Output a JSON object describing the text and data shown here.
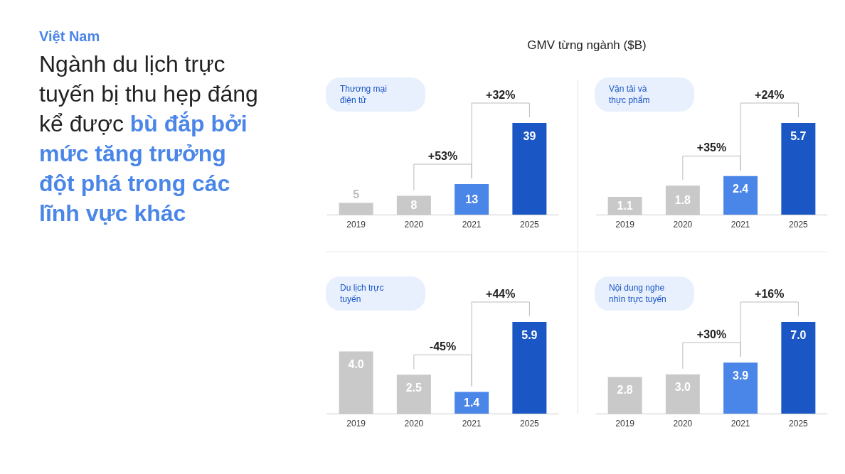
{
  "chart_data": [
    {
      "type": "other",
      "title": "Việt Nam",
      "subtitle": "Ngành du lịch trực tuyến bị thu hẹp đáng kể được",
      "annotations": [
        "bù đắp bởi mức tăng trưởng đột phá trong các lĩnh vực khác",
        "GMV từng ngành ($B)"
      ]
    },
    {
      "type": "bar",
      "title": "Thương mại điện tử",
      "categories": [
        "2019",
        "2020",
        "2021",
        "2025"
      ],
      "values": [
        5,
        8,
        13,
        39
      ],
      "value_labels": [
        "5",
        "8",
        "13",
        "39"
      ],
      "colors": [
        "#c9c9c9",
        "#c9c9c9",
        "#4a86e8",
        "#1a56c4"
      ],
      "annotations": [
        "+53%",
        "+32%"
      ]
    },
    {
      "type": "bar",
      "title": "Vận tải và thực phẩm",
      "categories": [
        "2019",
        "2020",
        "2021",
        "2025"
      ],
      "values": [
        1.1,
        1.8,
        2.4,
        5.7
      ],
      "value_labels": [
        "1.1",
        "1.8",
        "2.4",
        "5.7"
      ],
      "colors": [
        "#c9c9c9",
        "#c9c9c9",
        "#4a86e8",
        "#1a56c4"
      ],
      "annotations": [
        "+35%",
        "+24%"
      ]
    },
    {
      "type": "bar",
      "title": "Du lịch trực tuyến",
      "categories": [
        "2019",
        "2020",
        "2021",
        "2025"
      ],
      "values": [
        4.0,
        2.5,
        1.4,
        5.9
      ],
      "value_labels": [
        "4.0",
        "2.5",
        "1.4",
        "5.9"
      ],
      "colors": [
        "#c9c9c9",
        "#c9c9c9",
        "#4a86e8",
        "#1a56c4"
      ],
      "annotations": [
        "-45%",
        "+44%"
      ]
    },
    {
      "type": "bar",
      "title": "Nội dung nghe nhìn trực tuyến",
      "categories": [
        "2019",
        "2020",
        "2021",
        "2025"
      ],
      "values": [
        2.8,
        3.0,
        3.9,
        7.0
      ],
      "value_labels": [
        "2.8",
        "3.0",
        "3.9",
        "7.0"
      ],
      "colors": [
        "#c9c9c9",
        "#c9c9c9",
        "#4a86e8",
        "#1a56c4"
      ],
      "annotations": [
        "+30%",
        "+16%"
      ]
    }
  ]
}
